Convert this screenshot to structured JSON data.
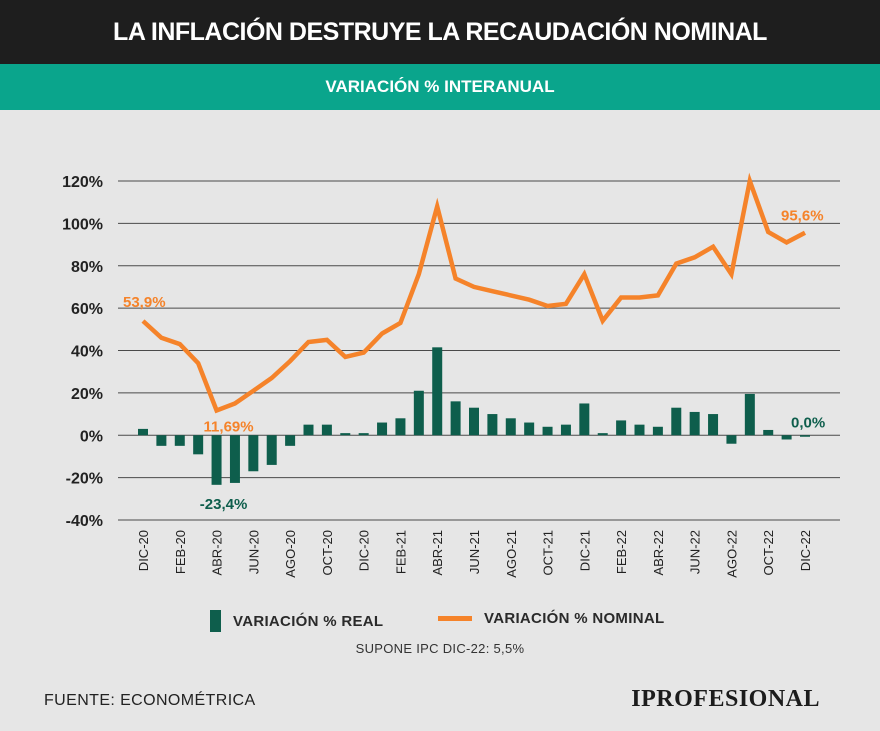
{
  "header": {
    "title": "LA INFLACIÓN DESTRUYE LA RECAUDACIÓN NOMINAL",
    "subtitle": "VARIACIÓN % INTERANUAL"
  },
  "legend": {
    "real_label": "VARIACIÓN % REAL",
    "nominal_label": "VARIACIÓN % NOMINAL"
  },
  "note": "SUPONE IPC DIC-22: 5,5%",
  "footer": {
    "source": "FUENTE: ECONOMÉTRICA",
    "logo": "IPROFESIONAL"
  },
  "colors": {
    "real": "#0e5e4c",
    "nominal": "#f5832a",
    "title_bg": "#1e1e1e",
    "subtitle_bg": "#0aa58c",
    "background": "#e6e6e6"
  },
  "chart_data": {
    "type": "bar+line",
    "ylim": [
      -40,
      120
    ],
    "yticks": [
      -40,
      -20,
      0,
      20,
      40,
      60,
      80,
      100,
      120
    ],
    "ytick_labels": [
      "-40%",
      "-20%",
      "0%",
      "20%",
      "40%",
      "60%",
      "80%",
      "100%",
      "120%"
    ],
    "x_tick_labels": [
      "DIC-20",
      "FEB-20",
      "ABR-20",
      "JUN-20",
      "AGO-20",
      "OCT-20",
      "DIC-20",
      "FEB-21",
      "ABR-21",
      "JUN-21",
      "AGO-21",
      "OCT-21",
      "DIC-21",
      "FEB-22",
      "ABR-22",
      "JUN-22",
      "AGO-22",
      "OCT-22",
      "DIC-22"
    ],
    "series": [
      {
        "name": "VARIACIÓN % REAL",
        "type": "bar",
        "values": [
          3,
          -5,
          -5,
          -9,
          -23.4,
          -22.5,
          -17,
          -14,
          -5,
          5,
          5,
          1,
          1,
          6,
          8,
          21,
          41.5,
          16,
          13,
          10,
          8,
          6,
          4,
          5,
          15,
          1,
          7,
          5,
          4,
          13,
          11,
          10,
          -4,
          19.5,
          2.5,
          -2,
          0.0
        ]
      },
      {
        "name": "VARIACIÓN % NOMINAL",
        "type": "line",
        "values": [
          53.9,
          46,
          43,
          34,
          11.69,
          15,
          21,
          27,
          35,
          44,
          45,
          37,
          39,
          48,
          53,
          76,
          108,
          74,
          70,
          68,
          66,
          64,
          61,
          62,
          76,
          54,
          65,
          65,
          66,
          81,
          84,
          89,
          76,
          120,
          96,
          91,
          95.6
        ]
      }
    ],
    "annotations": [
      {
        "text": "53,9%",
        "series": "nominal",
        "index": 0
      },
      {
        "text": "11,69%",
        "series": "nominal",
        "index": 4
      },
      {
        "text": "-23,4%",
        "series": "real",
        "index": 4
      },
      {
        "text": "95,6%",
        "series": "nominal",
        "index": 36
      },
      {
        "text": "0,0%",
        "series": "real",
        "index": 36
      }
    ]
  }
}
